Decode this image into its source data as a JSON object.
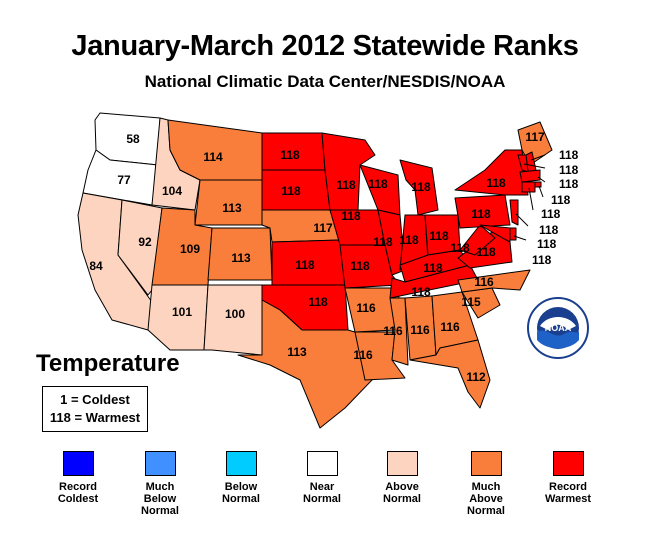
{
  "title": "January-March 2012 Statewide Ranks",
  "subtitle": "National Climatic Data Center/NESDIS/NOAA",
  "map_label": "Temperature",
  "key": {
    "line1": "1 = Coldest",
    "line2": "118 = Warmest"
  },
  "colors": {
    "record_coldest": "#0000ff",
    "much_below": "#4090ff",
    "below": "#00ccff",
    "near": "#ffffff",
    "above": "#fcd4c0",
    "much_above": "#f97e3c",
    "record_warmest": "#ff0000"
  },
  "legend": [
    {
      "id": "record_coldest",
      "line1": "Record",
      "line2": "Coldest",
      "line3": "",
      "color": "#0000ff"
    },
    {
      "id": "much_below",
      "line1": "Much",
      "line2": "Below",
      "line3": "Normal",
      "color": "#4090ff"
    },
    {
      "id": "below",
      "line1": "Below",
      "line2": "Normal",
      "line3": "",
      "color": "#00ccff"
    },
    {
      "id": "near",
      "line1": "Near",
      "line2": "Normal",
      "line3": "",
      "color": "#ffffff"
    },
    {
      "id": "above",
      "line1": "Above",
      "line2": "Normal",
      "line3": "",
      "color": "#fcd4c0"
    },
    {
      "id": "much_above",
      "line1": "Much",
      "line2": "Above",
      "line3": "Normal",
      "color": "#f97e3c"
    },
    {
      "id": "record_warmest",
      "line1": "Record",
      "line2": "Warmest",
      "line3": "",
      "color": "#ff0000"
    }
  ],
  "states": [
    {
      "state": "Washington",
      "rank": "58",
      "cat": "near"
    },
    {
      "state": "Oregon",
      "rank": "77",
      "cat": "near"
    },
    {
      "state": "California",
      "rank": "84",
      "cat": "above"
    },
    {
      "state": "Nevada",
      "rank": "92",
      "cat": "above"
    },
    {
      "state": "Idaho",
      "rank": "104",
      "cat": "above"
    },
    {
      "state": "Montana",
      "rank": "114",
      "cat": "much_above"
    },
    {
      "state": "Wyoming",
      "rank": "113",
      "cat": "much_above"
    },
    {
      "state": "Utah",
      "rank": "109",
      "cat": "much_above"
    },
    {
      "state": "Arizona",
      "rank": "101",
      "cat": "above"
    },
    {
      "state": "Colorado",
      "rank": "113",
      "cat": "much_above"
    },
    {
      "state": "New Mexico",
      "rank": "100",
      "cat": "above"
    },
    {
      "state": "North Dakota",
      "rank": "118",
      "cat": "record_warmest"
    },
    {
      "state": "South Dakota",
      "rank": "118",
      "cat": "record_warmest"
    },
    {
      "state": "Nebraska",
      "rank": "117",
      "cat": "much_above"
    },
    {
      "state": "Kansas",
      "rank": "118",
      "cat": "record_warmest"
    },
    {
      "state": "Oklahoma",
      "rank": "118",
      "cat": "record_warmest"
    },
    {
      "state": "Texas",
      "rank": "113",
      "cat": "much_above"
    },
    {
      "state": "Minnesota",
      "rank": "118",
      "cat": "record_warmest"
    },
    {
      "state": "Iowa",
      "rank": "118",
      "cat": "record_warmest"
    },
    {
      "state": "Missouri",
      "rank": "118",
      "cat": "record_warmest"
    },
    {
      "state": "Arkansas",
      "rank": "116",
      "cat": "much_above"
    },
    {
      "state": "Louisiana",
      "rank": "116",
      "cat": "much_above"
    },
    {
      "state": "Wisconsin",
      "rank": "118",
      "cat": "record_warmest"
    },
    {
      "state": "Illinois",
      "rank": "118",
      "cat": "record_warmest"
    },
    {
      "state": "Michigan",
      "rank": "118",
      "cat": "record_warmest"
    },
    {
      "state": "Indiana",
      "rank": "118",
      "cat": "record_warmest"
    },
    {
      "state": "Ohio",
      "rank": "118",
      "cat": "record_warmest"
    },
    {
      "state": "Kentucky",
      "rank": "118",
      "cat": "record_warmest"
    },
    {
      "state": "Tennessee",
      "rank": "118",
      "cat": "record_warmest"
    },
    {
      "state": "Mississippi",
      "rank": "116",
      "cat": "much_above"
    },
    {
      "state": "Alabama",
      "rank": "116",
      "cat": "much_above"
    },
    {
      "state": "Georgia",
      "rank": "116",
      "cat": "much_above"
    },
    {
      "state": "Florida",
      "rank": "112",
      "cat": "much_above"
    },
    {
      "state": "South Carolina",
      "rank": "115",
      "cat": "much_above"
    },
    {
      "state": "North Carolina",
      "rank": "116",
      "cat": "much_above"
    },
    {
      "state": "Virginia",
      "rank": "118",
      "cat": "record_warmest"
    },
    {
      "state": "West Virginia",
      "rank": "118",
      "cat": "record_warmest"
    },
    {
      "state": "Pennsylvania",
      "rank": "118",
      "cat": "record_warmest"
    },
    {
      "state": "New York",
      "rank": "118",
      "cat": "record_warmest"
    },
    {
      "state": "Maine",
      "rank": "117",
      "cat": "much_above"
    },
    {
      "state": "New Hampshire",
      "rank": "118",
      "cat": "record_warmest"
    },
    {
      "state": "Vermont",
      "rank": "118",
      "cat": "record_warmest"
    },
    {
      "state": "Massachusetts",
      "rank": "118",
      "cat": "record_warmest"
    },
    {
      "state": "Rhode Island",
      "rank": "118",
      "cat": "record_warmest"
    },
    {
      "state": "Connecticut",
      "rank": "118",
      "cat": "record_warmest"
    },
    {
      "state": "New Jersey",
      "rank": "118",
      "cat": "record_warmest"
    },
    {
      "state": "Delaware",
      "rank": "118",
      "cat": "record_warmest"
    },
    {
      "state": "Maryland",
      "rank": "118",
      "cat": "record_warmest"
    }
  ],
  "logo": {
    "text": "NOAA"
  }
}
